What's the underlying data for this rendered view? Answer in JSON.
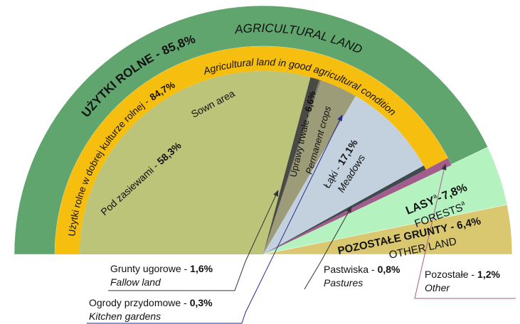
{
  "chart_data": {
    "type": "pie",
    "outer": [
      {
        "name_pl": "UŻYTKI ROLNE -",
        "name_en": "AGRICULTURAL LAND",
        "value": 85.8,
        "value_label": "85,8%",
        "color": "#5fa56d"
      },
      {
        "name_pl": "LASY",
        "note": "a",
        "dash": "-",
        "name_en": "FORESTS",
        "value": 7.8,
        "value_label": "7,8%",
        "color": "#b4f2c0"
      },
      {
        "name_pl": "POZOSTAŁE GRUNTY -",
        "name_en": "OTHER LAND",
        "value": 6.4,
        "value_label": "6,4%",
        "color": "#d9c870"
      }
    ],
    "good_condition": {
      "name_pl": "Użytki rolne w dobrej kulturze rolnej -",
      "name_en": "Agricultural land in good agricultural condition",
      "value": 84.7,
      "value_label": "84,7%",
      "color": "#f6be0f"
    },
    "inner": [
      {
        "name_pl": "Pod zasiewami -",
        "name_en": "Sown area",
        "value": 58.3,
        "value_label": "58,3%",
        "color": "#bcc47a"
      },
      {
        "name_pl": "Grunty ugorowe -",
        "name_en": "Fallow land",
        "value": 1.6,
        "value_label": "1,6%",
        "color": "#4a4a44"
      },
      {
        "name_pl": "Ogrody przydomowe -",
        "name_en": "Kitchen gardens",
        "value": 0.3,
        "value_label": "0,3%",
        "color": "#7a7a6a"
      },
      {
        "name_pl": "Uprawy trwałe -",
        "name_en": "Permanent crops",
        "value": 6.6,
        "value_label": "6,6%",
        "color": "#9c9c78"
      },
      {
        "name_pl": "Łąki -",
        "name_en": "Meadows",
        "value": 17.1,
        "value_label": "17,1%",
        "color": "#c3d1df"
      },
      {
        "name_pl": "Pastwiska -",
        "name_en": "Pastures",
        "value": 0.8,
        "value_label": "0,8%",
        "color": "#3e4a50"
      },
      {
        "name_pl": "Pozostałe -",
        "name_en": "Other",
        "value": 1.2,
        "value_label": "1,2%",
        "color": "#a35c8c"
      }
    ]
  }
}
